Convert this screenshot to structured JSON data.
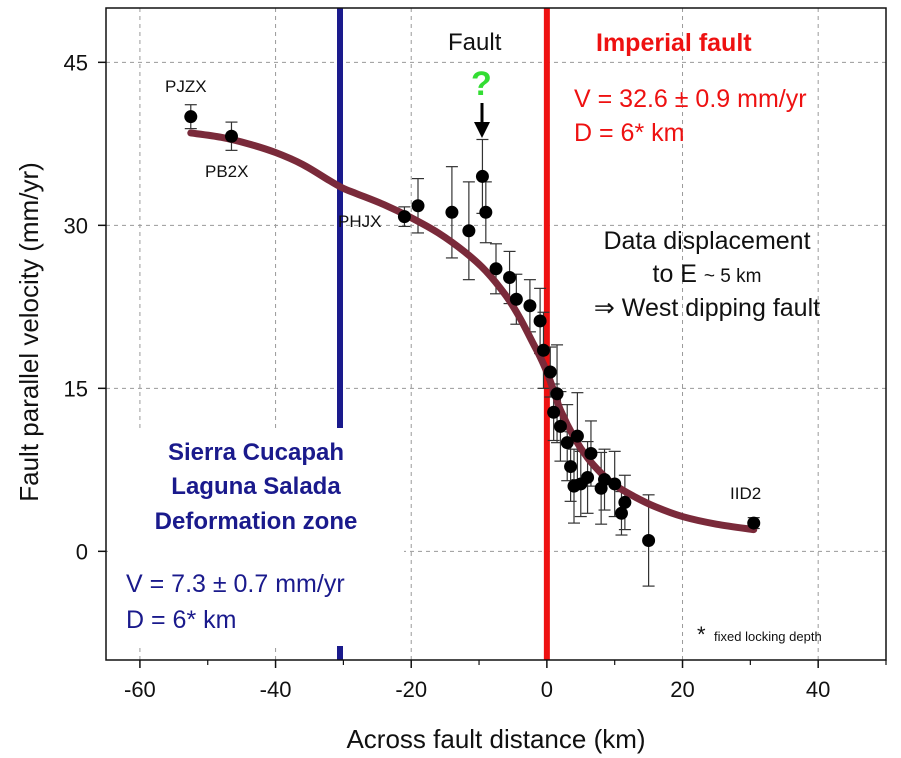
{
  "colors": {
    "model_curve": "#7a2a3a",
    "imperial_fault": "#ee1111",
    "sierra_cucapah": "#1a1a8c",
    "question_mark": "#33dd33",
    "data_points": "#000000"
  },
  "chart_data": {
    "type": "scatter",
    "xlabel": "Across fault distance (km)",
    "ylabel": "Fault parallel velocity (mm/yr)",
    "xlim": [
      -65,
      50
    ],
    "ylim": [
      -10,
      50
    ],
    "xticks": [
      -60,
      -40,
      -20,
      0,
      20,
      40
    ],
    "yticks": [
      0,
      15,
      30,
      45
    ],
    "grid": true,
    "series": [
      {
        "kind": "observed",
        "x": [
          -52.5,
          -46.5,
          -21,
          -19,
          -14,
          -11.5,
          -9.5,
          -9,
          -7.5,
          -5.5,
          -4.5,
          -2.5,
          -1,
          -0.5,
          0.5,
          1,
          1.5,
          2,
          3,
          3.5,
          4,
          4.5,
          5,
          6,
          6.5,
          8,
          8.5,
          10,
          11,
          11.5,
          15,
          30.5
        ],
        "y": [
          40,
          38.2,
          30.8,
          31.8,
          31.2,
          29.5,
          34.5,
          31.2,
          26,
          25.2,
          23.2,
          22.6,
          21.2,
          18.5,
          16.5,
          12.8,
          14.5,
          11.5,
          10,
          7.8,
          6,
          10.6,
          6.2,
          6.8,
          9,
          5.8,
          6.6,
          6.2,
          3.5,
          4.5,
          1,
          2.6
        ],
        "err": [
          1.1,
          1.3,
          0.9,
          2.5,
          4.2,
          4.5,
          3.4,
          2.8,
          2.3,
          2.4,
          2.3,
          2.4,
          3.0,
          3.5,
          2.3,
          2.6,
          4.5,
          3.2,
          3.5,
          3.2,
          3.4,
          4.0,
          3.0,
          3.3,
          3.0,
          3.3,
          2.8,
          3.0,
          2.0,
          2.5,
          4.2,
          0.5
        ]
      },
      {
        "kind": "model",
        "x": [
          -52.5,
          -48,
          -44,
          -40,
          -36,
          -32,
          -30,
          -28,
          -24,
          -20,
          -16,
          -12,
          -9,
          -6,
          -4,
          -2,
          -1,
          0,
          1,
          2,
          4,
          6,
          8,
          10,
          13,
          16,
          20,
          25,
          30.5
        ],
        "y": [
          38.5,
          38.1,
          37.5,
          36.7,
          35.6,
          34.1,
          33.4,
          32.9,
          31.9,
          30.7,
          29.3,
          27.5,
          25.8,
          23.5,
          21.5,
          19.1,
          17.9,
          16.5,
          14.8,
          13.0,
          10.5,
          8.6,
          7.2,
          6.1,
          5.0,
          4.1,
          3.2,
          2.5,
          2.0
        ]
      }
    ],
    "faults": {
      "imperial": {
        "x": 0,
        "label": "Imperial fault"
      },
      "sierra_cucapah": {
        "x": -30.5
      },
      "data_fault": {
        "x": -9.5,
        "label": "Fault",
        "mark": "?"
      }
    },
    "station_labels": [
      {
        "text": "PJZX",
        "x": -52.5,
        "y": 40
      },
      {
        "text": "PB2X",
        "x": -46.5,
        "y": 38.2
      },
      {
        "text": "PHJX",
        "x": -21,
        "y": 30.8
      },
      {
        "text": "IID2",
        "x": 30.5,
        "y": 2.6
      }
    ],
    "annotations": {
      "imperial_velocity": "V = 32.6  ± 0.9 mm/yr",
      "imperial_depth": "D = 6* km",
      "displacement_line1": "Data displacement",
      "displacement_line2a": "to E ",
      "displacement_line2b": "~ 5 km",
      "displacement_line3": "⇒ West dipping fault",
      "zone_line1": "Sierra Cucapah",
      "zone_line2": "Laguna Salada",
      "zone_line3": "Deformation zone",
      "zone_velocity": "V = 7.3  ± 0.7 mm/yr",
      "zone_depth": "D = 6* km",
      "footnote_star": "*",
      "footnote_text": "fixed locking depth"
    }
  }
}
